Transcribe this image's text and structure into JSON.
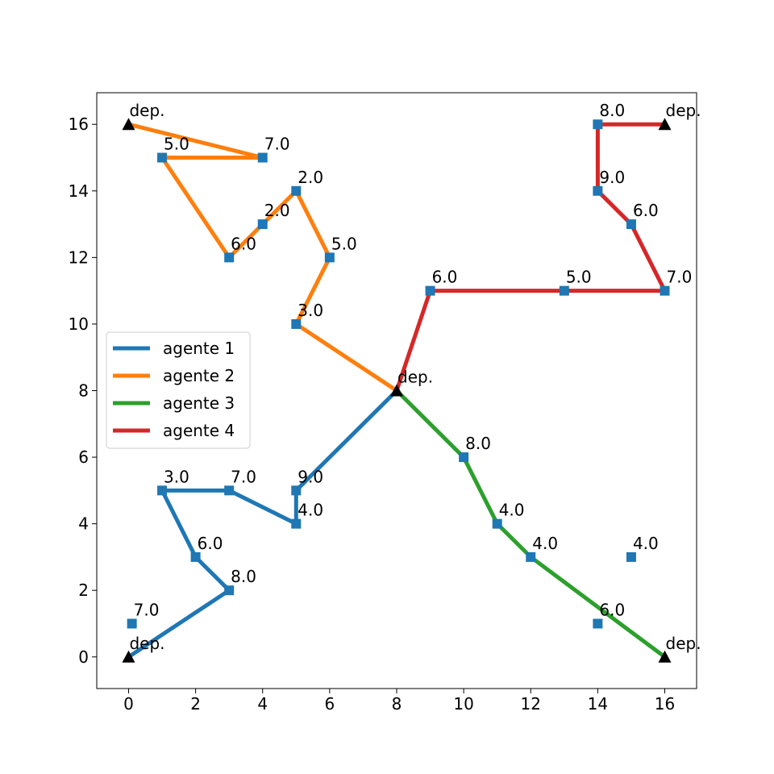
{
  "chart_data": {
    "type": "line",
    "title": "",
    "xlabel": "",
    "ylabel": "",
    "xlim": [
      -0.95,
      16.95
    ],
    "ylim": [
      -0.95,
      16.95
    ],
    "x_ticks": [
      "0",
      "2",
      "4",
      "6",
      "8",
      "10",
      "12",
      "14",
      "16"
    ],
    "y_ticks": [
      "0",
      "2",
      "4",
      "6",
      "8",
      "10",
      "12",
      "14",
      "16"
    ],
    "legend": {
      "placement": "center-left"
    },
    "depot_label": "dep.",
    "depot_color": "#000000",
    "node_color": "#1f77b4",
    "depots": [
      {
        "x": 0,
        "y": 16
      },
      {
        "x": 16,
        "y": 16
      },
      {
        "x": 8,
        "y": 8
      },
      {
        "x": 0,
        "y": 0
      },
      {
        "x": 16,
        "y": 0
      }
    ],
    "nodes": [
      {
        "x": 0.1,
        "y": 1,
        "label": "7.0"
      },
      {
        "x": 3,
        "y": 2,
        "label": "8.0"
      },
      {
        "x": 2,
        "y": 3,
        "label": "6.0"
      },
      {
        "x": 1,
        "y": 5,
        "label": "3.0"
      },
      {
        "x": 3,
        "y": 5,
        "label": "7.0"
      },
      {
        "x": 5,
        "y": 4,
        "label": "4.0"
      },
      {
        "x": 5,
        "y": 5,
        "label": "9.0"
      },
      {
        "x": 5,
        "y": 10,
        "label": "3.0"
      },
      {
        "x": 6,
        "y": 12,
        "label": "5.0"
      },
      {
        "x": 5,
        "y": 14,
        "label": "2.0"
      },
      {
        "x": 4,
        "y": 13,
        "label": "2.0"
      },
      {
        "x": 3,
        "y": 12,
        "label": "6.0"
      },
      {
        "x": 1,
        "y": 15,
        "label": "5.0"
      },
      {
        "x": 4,
        "y": 15,
        "label": "7.0"
      },
      {
        "x": 10,
        "y": 6,
        "label": "8.0"
      },
      {
        "x": 11,
        "y": 4,
        "label": "4.0"
      },
      {
        "x": 12,
        "y": 3,
        "label": "4.0"
      },
      {
        "x": 14,
        "y": 1,
        "label": "6.0"
      },
      {
        "x": 15,
        "y": 3,
        "label": "4.0"
      },
      {
        "x": 9,
        "y": 11,
        "label": "6.0"
      },
      {
        "x": 13,
        "y": 11,
        "label": "5.0"
      },
      {
        "x": 16,
        "y": 11,
        "label": "7.0"
      },
      {
        "x": 15,
        "y": 13,
        "label": "6.0"
      },
      {
        "x": 14,
        "y": 14,
        "label": "9.0"
      },
      {
        "x": 14,
        "y": 16,
        "label": "8.0"
      }
    ],
    "series": [
      {
        "name": "agente 1",
        "color": "#1f77b4",
        "points": [
          [
            0,
            0
          ],
          [
            3,
            2
          ],
          [
            2,
            3
          ],
          [
            1,
            5
          ],
          [
            3,
            5
          ],
          [
            5,
            4
          ],
          [
            5,
            5
          ],
          [
            8,
            8
          ]
        ]
      },
      {
        "name": "agente 2",
        "color": "#ff7f0e",
        "points": [
          [
            8,
            8
          ],
          [
            5,
            10
          ],
          [
            6,
            12
          ],
          [
            5,
            14
          ],
          [
            4,
            13
          ],
          [
            3,
            12
          ],
          [
            1,
            15
          ],
          [
            4,
            15
          ],
          [
            0,
            16
          ]
        ]
      },
      {
        "name": "agente 3",
        "color": "#2ca02c",
        "points": [
          [
            8,
            8
          ],
          [
            10,
            6
          ],
          [
            11,
            4
          ],
          [
            12,
            3
          ],
          [
            16,
            0
          ]
        ]
      },
      {
        "name": "agente 4",
        "color": "#d62728",
        "points": [
          [
            8,
            8
          ],
          [
            9,
            11
          ],
          [
            13,
            11
          ],
          [
            16,
            11
          ],
          [
            15,
            13
          ],
          [
            14,
            14
          ],
          [
            14,
            16
          ],
          [
            16,
            16
          ]
        ]
      }
    ]
  }
}
